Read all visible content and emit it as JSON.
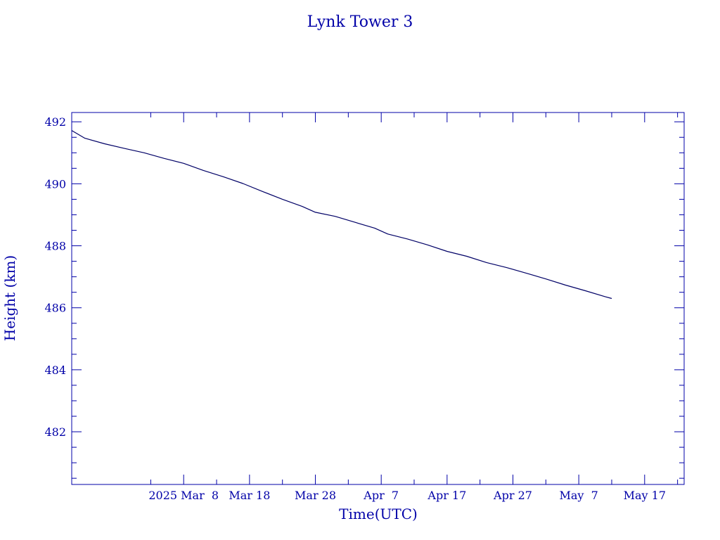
{
  "chart_data": {
    "type": "line",
    "title": "Lynk Tower 3",
    "xlabel": "Time(UTC)",
    "ylabel": "Height (km)",
    "xaxis": {
      "type": "date",
      "range": [
        "2025-02-19",
        "2025-05-23"
      ],
      "tick_labels": [
        {
          "date": "2025-03-08",
          "label": "2025 Mar  8"
        },
        {
          "date": "2025-03-18",
          "label": "Mar 18"
        },
        {
          "date": "2025-03-28",
          "label": "Mar 28"
        },
        {
          "date": "2025-04-07",
          "label": "Apr  7"
        },
        {
          "date": "2025-04-17",
          "label": "Apr 17"
        },
        {
          "date": "2025-04-27",
          "label": "Apr 27"
        },
        {
          "date": "2025-05-07",
          "label": "May  7"
        },
        {
          "date": "2025-05-17",
          "label": "May 17"
        }
      ]
    },
    "ylim": [
      480.3,
      492.3
    ],
    "yticks": [
      482,
      484,
      486,
      488,
      490,
      492
    ],
    "grid": false,
    "series": [
      {
        "color": "#000066",
        "points": [
          {
            "x": "2025-02-19",
            "y": 491.72
          },
          {
            "x": "2025-02-21",
            "y": 491.47
          },
          {
            "x": "2025-02-24",
            "y": 491.29
          },
          {
            "x": "2025-02-27",
            "y": 491.14
          },
          {
            "x": "2025-03-02",
            "y": 491.0
          },
          {
            "x": "2025-03-05",
            "y": 490.82
          },
          {
            "x": "2025-03-08",
            "y": 490.66
          },
          {
            "x": "2025-03-11",
            "y": 490.43
          },
          {
            "x": "2025-03-14",
            "y": 490.23
          },
          {
            "x": "2025-03-17",
            "y": 490.01
          },
          {
            "x": "2025-03-20",
            "y": 489.75
          },
          {
            "x": "2025-03-23",
            "y": 489.5
          },
          {
            "x": "2025-03-26",
            "y": 489.27
          },
          {
            "x": "2025-03-28",
            "y": 489.08
          },
          {
            "x": "2025-03-31",
            "y": 488.95
          },
          {
            "x": "2025-04-03",
            "y": 488.76
          },
          {
            "x": "2025-04-06",
            "y": 488.57
          },
          {
            "x": "2025-04-08",
            "y": 488.38
          },
          {
            "x": "2025-04-11",
            "y": 488.22
          },
          {
            "x": "2025-04-14",
            "y": 488.03
          },
          {
            "x": "2025-04-17",
            "y": 487.82
          },
          {
            "x": "2025-04-20",
            "y": 487.66
          },
          {
            "x": "2025-04-23",
            "y": 487.46
          },
          {
            "x": "2025-04-26",
            "y": 487.3
          },
          {
            "x": "2025-04-29",
            "y": 487.12
          },
          {
            "x": "2025-05-02",
            "y": 486.93
          },
          {
            "x": "2025-05-05",
            "y": 486.73
          },
          {
            "x": "2025-05-08",
            "y": 486.55
          },
          {
            "x": "2025-05-11",
            "y": 486.36
          },
          {
            "x": "2025-05-12",
            "y": 486.3
          }
        ]
      }
    ]
  },
  "colors": {
    "axis": "#0000a8",
    "text": "#0000a8",
    "line": "#000066"
  }
}
